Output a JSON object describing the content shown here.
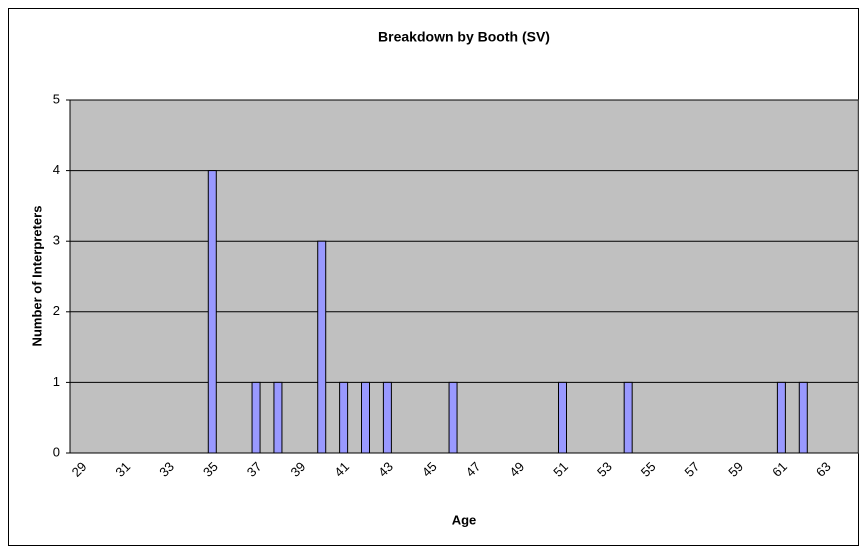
{
  "chart_data": {
    "type": "bar",
    "title": "Breakdown by Booth (SV)",
    "x_label": "Age",
    "y_label": "Number of Interpreters",
    "categories": [
      "29",
      null,
      "31",
      null,
      "33",
      null,
      "35",
      null,
      "37",
      null,
      "39",
      null,
      "41",
      null,
      "43",
      null,
      "45",
      null,
      "47",
      null,
      "49",
      null,
      "51",
      null,
      "53",
      null,
      "55",
      null,
      "57",
      null,
      "59",
      null,
      "61",
      null,
      "63",
      null
    ],
    "values": [
      0,
      0,
      0,
      0,
      0,
      0,
      4,
      0,
      1,
      1,
      0,
      3,
      1,
      1,
      1,
      0,
      0,
      1,
      0,
      0,
      0,
      0,
      1,
      0,
      0,
      1,
      0,
      0,
      0,
      0,
      0,
      0,
      1,
      1,
      0,
      0
    ],
    "color": "#9999ff",
    "ylim": [
      0,
      5
    ],
    "yticks": [
      0,
      1,
      2,
      3,
      4,
      5
    ],
    "grid": true
  }
}
